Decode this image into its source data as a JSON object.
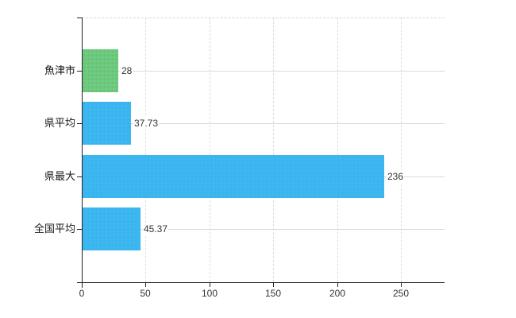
{
  "chart_data": {
    "type": "bar",
    "orientation": "horizontal",
    "title": "",
    "xlabel": "",
    "ylabel": "",
    "categories": [
      "魚津市",
      "県平均",
      "県最大",
      "全国平均"
    ],
    "values": [
      28,
      37.73,
      236,
      45.37
    ],
    "value_labels": [
      "28",
      "37.73",
      "236",
      "45.37"
    ],
    "bar_colors": [
      "green",
      "blue",
      "blue",
      "blue"
    ],
    "x_ticks": [
      0,
      50,
      100,
      150,
      200,
      250
    ],
    "x_tick_labels": [
      "0",
      "50",
      "100",
      "150",
      "200",
      "250"
    ],
    "xlim": [
      0,
      284
    ],
    "legend": null,
    "grid": {
      "vertical_lines": "dashed",
      "horizontal_category_lines": "solid",
      "plot_top_border": "dashed"
    },
    "colors": {
      "bar_green": "#6fcb80",
      "bar_blue": "#3db7f0",
      "axis": "#222222",
      "grid_line": "#dcdcdc",
      "text": "#333333"
    }
  }
}
